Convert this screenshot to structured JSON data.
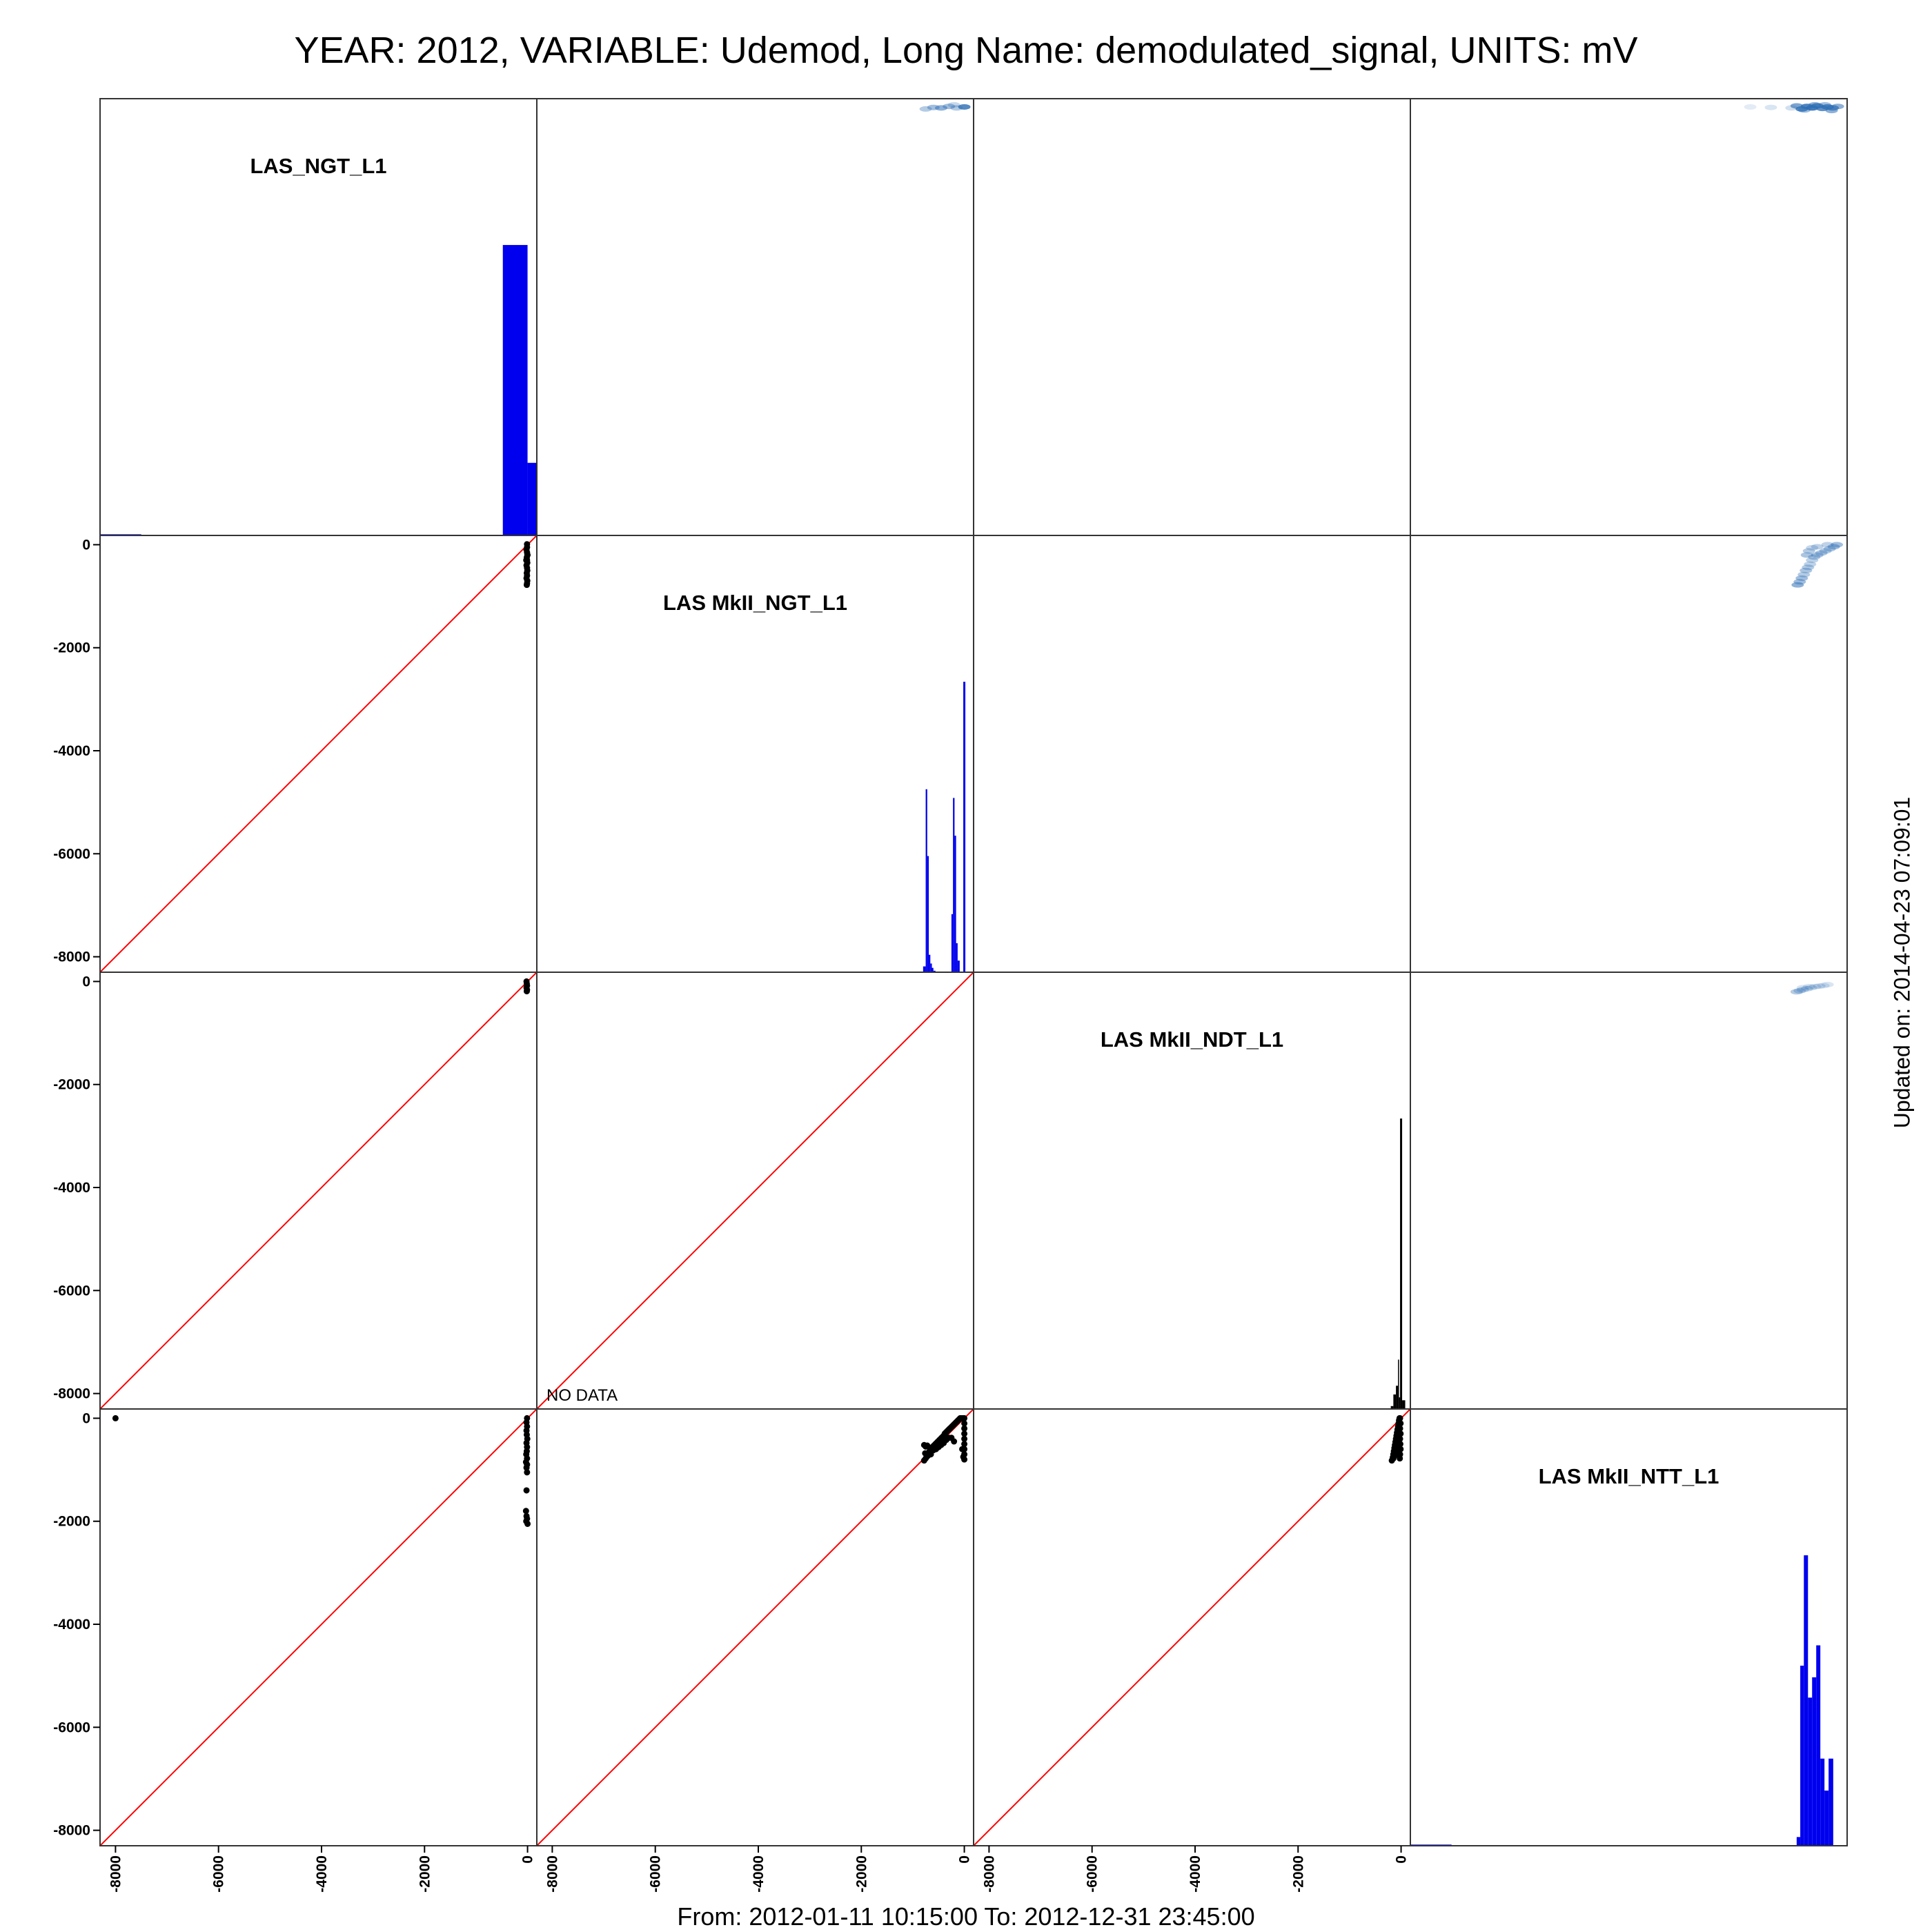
{
  "title": "YEAR: 2012, VARIABLE: Udemod, Long Name: demodulated_signal, UNITS: mV",
  "footer": "From: 2012-01-11 10:15:00 To: 2012-12-31 23:45:00",
  "updated": "Updated on: 2014-04-23 07:09:01",
  "colors": {
    "histogram": "#0000ee",
    "identity_line": "#ff0000",
    "points": "#000000",
    "density": "#2f6fb5"
  },
  "chart_data": {
    "type": "scatter",
    "layout": "pairs-matrix",
    "variables": [
      "LAS_NGT_L1",
      "LAS MkII_NGT_L1",
      "LAS MkII_NDT_L1",
      "LAS MkII_NTT_L1"
    ],
    "axis_ticks": [
      -8000,
      -6000,
      -4000,
      -2000,
      0
    ],
    "axis_tick_labels": [
      "-8000",
      "-6000",
      "-4000",
      "-2000",
      "0"
    ],
    "axis_range": [
      -8300,
      180
    ],
    "no_data_label": "NO DATA",
    "histograms": [
      {
        "variable": "LAS_NGT_L1",
        "bins": [
          [
            -8300,
            -7500,
            0.004
          ],
          [
            -480,
            0,
            1.0
          ],
          [
            0,
            180,
            0.25
          ]
        ]
      },
      {
        "variable": "LAS MkII_NGT_L1",
        "bins": [
          [
            -800,
            -750,
            0.02
          ],
          [
            -750,
            -720,
            0.63
          ],
          [
            -720,
            -690,
            0.4
          ],
          [
            -690,
            -660,
            0.06
          ],
          [
            -660,
            -630,
            0.03
          ],
          [
            -630,
            -600,
            0.015
          ],
          [
            -600,
            -560,
            0.005
          ],
          [
            -250,
            -220,
            0.2
          ],
          [
            -220,
            -190,
            0.6
          ],
          [
            -190,
            -160,
            0.47
          ],
          [
            -160,
            -130,
            0.1
          ],
          [
            -130,
            -90,
            0.04
          ],
          [
            -20,
            20,
            1.0
          ]
        ]
      },
      {
        "variable": "LAS MkII_NDT_L1",
        "bins": [
          [
            -200,
            -150,
            0.01
          ],
          [
            -150,
            -100,
            0.05
          ],
          [
            -100,
            -60,
            0.08
          ],
          [
            -60,
            -40,
            0.17
          ],
          [
            -40,
            -20,
            0.04
          ],
          [
            -20,
            20,
            1.0
          ],
          [
            20,
            80,
            0.03
          ]
        ]
      },
      {
        "variable": "LAS MkII_NTT_L1",
        "bins": [
          [
            -8300,
            -7500,
            0.004
          ],
          [
            -800,
            -730,
            0.03
          ],
          [
            -730,
            -660,
            0.62
          ],
          [
            -660,
            -580,
            1.0
          ],
          [
            -580,
            -500,
            0.51
          ],
          [
            -500,
            -420,
            0.58
          ],
          [
            -420,
            -340,
            0.69
          ],
          [
            -340,
            -260,
            0.3
          ],
          [
            -260,
            -180,
            0.19
          ],
          [
            -180,
            -90,
            0.3
          ]
        ]
      }
    ],
    "scatter_panels": [
      {
        "x": "LAS_NGT_L1",
        "y": "LAS MkII_NGT_L1",
        "points": [
          [
            -10,
            10
          ],
          [
            -10,
            -50
          ],
          [
            -20,
            -100
          ],
          [
            -10,
            -150
          ],
          [
            -5,
            -200
          ],
          [
            -15,
            -250
          ],
          [
            -10,
            -300
          ],
          [
            -5,
            -350
          ],
          [
            -20,
            -400
          ],
          [
            -10,
            -450
          ],
          [
            -5,
            -500
          ],
          [
            -15,
            -550
          ],
          [
            -10,
            -600
          ],
          [
            -20,
            -650
          ],
          [
            -5,
            -700
          ],
          [
            -10,
            -750
          ],
          [
            -15,
            -780
          ],
          [
            -25,
            -300
          ],
          [
            0,
            -200
          ]
        ]
      },
      {
        "x": "LAS_NGT_L1",
        "y": "LAS MkII_NDT_L1",
        "points": [
          [
            -20,
            0
          ],
          [
            -15,
            -40
          ],
          [
            -10,
            -80
          ],
          [
            -20,
            -120
          ],
          [
            -10,
            -160
          ],
          [
            -15,
            -190
          ]
        ]
      },
      {
        "x": "LAS MkII_NGT_L1",
        "y": "LAS MkII_NDT_L1",
        "no_data": true
      },
      {
        "x": "LAS_NGT_L1",
        "y": "LAS MkII_NTT_L1",
        "points": [
          [
            -8000,
            0
          ],
          [
            -10,
            0
          ],
          [
            -20,
            -80
          ],
          [
            -10,
            -160
          ],
          [
            -20,
            -240
          ],
          [
            -15,
            -320
          ],
          [
            -5,
            -400
          ],
          [
            -20,
            -480
          ],
          [
            -10,
            -560
          ],
          [
            -15,
            -640
          ],
          [
            -25,
            -700
          ],
          [
            -10,
            -780
          ],
          [
            -30,
            -850
          ],
          [
            -10,
            -900
          ],
          [
            -20,
            -960
          ],
          [
            -10,
            -1050
          ],
          [
            -20,
            -1400
          ],
          [
            -30,
            -1800
          ],
          [
            -20,
            -1900
          ],
          [
            -10,
            -1950
          ],
          [
            -25,
            -2000
          ],
          [
            0,
            -2050
          ]
        ]
      },
      {
        "x": "LAS MkII_NGT_L1",
        "y": "LAS MkII_NTT_L1",
        "points": [
          [
            -780,
            -820
          ],
          [
            -750,
            -780
          ],
          [
            -720,
            -740
          ],
          [
            -700,
            -700
          ],
          [
            -680,
            -650
          ],
          [
            -660,
            -620
          ],
          [
            -650,
            -580
          ],
          [
            -640,
            -600
          ],
          [
            -620,
            -560
          ],
          [
            -600,
            -540
          ],
          [
            -580,
            -520
          ],
          [
            -560,
            -500
          ],
          [
            -540,
            -480
          ],
          [
            -520,
            -460
          ],
          [
            -500,
            -440
          ],
          [
            -480,
            -420
          ],
          [
            -460,
            -400
          ],
          [
            -440,
            -380
          ],
          [
            -420,
            -360
          ],
          [
            -400,
            -340
          ],
          [
            -380,
            -300
          ],
          [
            -360,
            -280
          ],
          [
            -340,
            -260
          ],
          [
            -320,
            -240
          ],
          [
            -300,
            -220
          ],
          [
            -280,
            -200
          ],
          [
            -260,
            -180
          ],
          [
            -240,
            -160
          ],
          [
            -220,
            -140
          ],
          [
            -200,
            -120
          ],
          [
            -180,
            -100
          ],
          [
            -160,
            -80
          ],
          [
            -140,
            -60
          ],
          [
            -120,
            -40
          ],
          [
            -100,
            -20
          ],
          [
            -80,
            0
          ],
          [
            -60,
            0
          ],
          [
            -40,
            0
          ],
          [
            -20,
            0
          ],
          [
            0,
            0
          ],
          [
            0,
            -100
          ],
          [
            0,
            -200
          ],
          [
            0,
            -300
          ],
          [
            0,
            -400
          ],
          [
            0,
            -500
          ],
          [
            0,
            -600
          ],
          [
            0,
            -700
          ],
          [
            0,
            -800
          ],
          [
            -20,
            -750
          ],
          [
            -40,
            -600
          ],
          [
            -200,
            -450
          ],
          [
            -250,
            -380
          ],
          [
            -750,
            -550
          ],
          [
            -780,
            -520
          ],
          [
            -720,
            -530
          ],
          [
            -760,
            -680
          ],
          [
            -700,
            -720
          ],
          [
            -650,
            -700
          ],
          [
            -600,
            -620
          ],
          [
            -550,
            -600
          ],
          [
            -500,
            -560
          ],
          [
            -450,
            -520
          ],
          [
            -400,
            -480
          ],
          [
            -350,
            -420
          ],
          [
            -300,
            -380
          ]
        ]
      },
      {
        "x": "LAS MkII_NDT_L1",
        "y": "LAS MkII_NTT_L1",
        "points": [
          [
            -180,
            -820
          ],
          [
            -160,
            -760
          ],
          [
            -150,
            -700
          ],
          [
            -140,
            -640
          ],
          [
            -130,
            -580
          ],
          [
            -120,
            -520
          ],
          [
            -110,
            -460
          ],
          [
            -100,
            -400
          ],
          [
            -90,
            -340
          ],
          [
            -80,
            -280
          ],
          [
            -70,
            -220
          ],
          [
            -60,
            -160
          ],
          [
            -50,
            -100
          ],
          [
            -40,
            -40
          ],
          [
            -30,
            0
          ],
          [
            -20,
            0
          ],
          [
            -10,
            -100
          ],
          [
            -20,
            -200
          ],
          [
            -10,
            -300
          ],
          [
            -20,
            -400
          ],
          [
            -15,
            -500
          ],
          [
            -10,
            -600
          ],
          [
            -20,
            -700
          ],
          [
            -25,
            -780
          ],
          [
            -150,
            -780
          ],
          [
            -120,
            -720
          ],
          [
            -90,
            -650
          ],
          [
            -60,
            -560
          ],
          [
            -40,
            -500
          ],
          [
            -100,
            -600
          ],
          [
            -80,
            -500
          ],
          [
            -60,
            -420
          ]
        ]
      }
    ],
    "density_panels": [
      {
        "x": "LAS MkII_NGT_L1",
        "y": "LAS_NGT_L1",
        "cells": [
          [
            -750,
            -20,
            0.4
          ],
          [
            -600,
            10,
            0.5
          ],
          [
            -450,
            0,
            0.6
          ],
          [
            -300,
            30,
            0.5
          ],
          [
            -150,
            0,
            0.4
          ],
          [
            0,
            20,
            0.9
          ],
          [
            -200,
            60,
            0.3
          ]
        ]
      },
      {
        "x": "LAS MkII_NTT_L1",
        "y": "LAS_NGT_L1",
        "cells": [
          [
            -1700,
            20,
            0.15
          ],
          [
            -1300,
            10,
            0.2
          ],
          [
            -900,
            0,
            0.25
          ],
          [
            -800,
            40,
            0.7
          ],
          [
            -700,
            -20,
            0.9
          ],
          [
            -600,
            30,
            0.95
          ],
          [
            -500,
            0,
            1.0
          ],
          [
            -400,
            40,
            0.9
          ],
          [
            -300,
            -10,
            0.85
          ],
          [
            -200,
            20,
            0.9
          ],
          [
            -100,
            0,
            0.8
          ],
          [
            0,
            30,
            0.6
          ],
          [
            -650,
            -40,
            0.5
          ],
          [
            -450,
            60,
            0.6
          ],
          [
            -250,
            60,
            0.5
          ],
          [
            -120,
            -50,
            0.6
          ]
        ]
      },
      {
        "x": "LAS MkII_NTT_L1",
        "y": "LAS MkII_NGT_L1",
        "cells": [
          [
            -780,
            -780,
            0.6
          ],
          [
            -740,
            -720,
            0.5
          ],
          [
            -700,
            -650,
            0.5
          ],
          [
            -660,
            -580,
            0.4
          ],
          [
            -620,
            -500,
            0.45
          ],
          [
            -580,
            -440,
            0.4
          ],
          [
            -540,
            -380,
            0.35
          ],
          [
            -500,
            -300,
            0.35
          ],
          [
            -460,
            -240,
            0.4
          ],
          [
            -400,
            -200,
            0.45
          ],
          [
            -320,
            -160,
            0.45
          ],
          [
            -240,
            -120,
            0.4
          ],
          [
            -160,
            -80,
            0.45
          ],
          [
            -80,
            -40,
            0.5
          ],
          [
            -20,
            0,
            0.5
          ],
          [
            -600,
            -200,
            0.45
          ],
          [
            -560,
            -120,
            0.4
          ],
          [
            -400,
            -40,
            0.35
          ],
          [
            -200,
            0,
            0.35
          ],
          [
            -500,
            -60,
            0.3
          ]
        ]
      },
      {
        "x": "LAS MkII_NTT_L1",
        "y": "LAS MkII_NDT_L1",
        "cells": [
          [
            -800,
            -200,
            0.4
          ],
          [
            -740,
            -180,
            0.35
          ],
          [
            -680,
            -160,
            0.3
          ],
          [
            -600,
            -140,
            0.3
          ],
          [
            -520,
            -120,
            0.25
          ],
          [
            -440,
            -100,
            0.25
          ],
          [
            -360,
            -90,
            0.25
          ],
          [
            -280,
            -80,
            0.2
          ],
          [
            -200,
            -60,
            0.2
          ],
          [
            -680,
            -120,
            0.2
          ],
          [
            -560,
            -100,
            0.2
          ]
        ]
      }
    ]
  }
}
